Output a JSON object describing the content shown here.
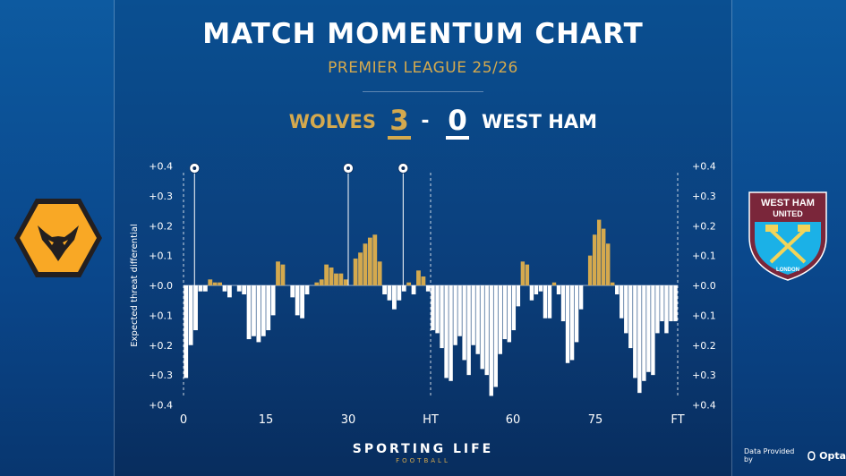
{
  "header": {
    "title": "MATCH MOMENTUM CHART",
    "subtitle": "PREMIER LEAGUE 25/26"
  },
  "match": {
    "home_team": "WOLVES",
    "home_score": "3",
    "separator": "-",
    "away_score": "0",
    "away_team": "WEST HAM"
  },
  "crests": {
    "away_text_top": "WEST HAM",
    "away_text_mid": "UNITED",
    "away_text_bottom": "LONDON"
  },
  "footer": {
    "brand": "SPORTING LIFE",
    "brand_sub": "FOOTBALL",
    "provider_prefix": "Data Provided by",
    "provider_name": "Opta"
  },
  "colors": {
    "home": "#d4a94e",
    "away": "#ffffff",
    "background": "#0b3f7c"
  },
  "chart_data": {
    "type": "bar",
    "ylabel": "Expected threat differential",
    "ylim": [
      -0.4,
      0.4
    ],
    "yticks": [
      "+0.4",
      "+0.3",
      "+0.2",
      "+0.1",
      "+0.0",
      "+0.1",
      "+0.2",
      "+0.3",
      "+0.4"
    ],
    "xtick_labels": [
      "0",
      "15",
      "30",
      "HT",
      "60",
      "75",
      "FT"
    ],
    "x_tick_minutes": [
      0,
      15,
      30,
      45,
      60,
      75,
      90
    ],
    "period_markers": [
      45,
      90
    ],
    "goal_minutes": [
      2,
      30,
      40
    ],
    "series": [
      {
        "name": "WOLVES",
        "period": "first_half",
        "values": [
          -0.31,
          -0.2,
          -0.15,
          -0.02,
          -0.02,
          0.02,
          0.01,
          0.01,
          -0.02,
          -0.04,
          0,
          -0.02,
          -0.03,
          -0.18,
          -0.17,
          -0.19,
          -0.17,
          -0.15,
          -0.1,
          0.08,
          0.07,
          0,
          -0.04,
          -0.1,
          -0.11,
          -0.03,
          0,
          0.01,
          0.02,
          0.07,
          0.06,
          0.04,
          0.04,
          0.02,
          0,
          0.09,
          0.11,
          0.14,
          0.16,
          0.17,
          0.08,
          -0.03,
          -0.05,
          -0.08,
          -0.05,
          -0.02,
          0.01,
          -0.03,
          0.05,
          0.03,
          -0.02
        ],
        "values_end_minute": 45
      },
      {
        "name": "WEST HAM",
        "period": "second_half",
        "values": [
          -0.15,
          -0.16,
          -0.21,
          -0.31,
          -0.32,
          -0.2,
          -0.17,
          -0.25,
          -0.3,
          -0.2,
          -0.23,
          -0.28,
          -0.3,
          -0.37,
          -0.34,
          -0.23,
          -0.18,
          -0.19,
          -0.15,
          -0.07,
          0.08,
          0.07,
          -0.05,
          -0.03,
          -0.02,
          -0.11,
          -0.11,
          0.01,
          -0.03,
          -0.12,
          -0.26,
          -0.25,
          -0.19,
          -0.08,
          0,
          0.1,
          0.17,
          0.22,
          0.19,
          0.14,
          0.01,
          -0.03,
          -0.11,
          -0.16,
          -0.21,
          -0.31,
          -0.36,
          -0.32,
          -0.29,
          -0.3,
          -0.16,
          -0.12,
          -0.16,
          -0.12,
          -0.12
        ],
        "values_end_minute": 90
      }
    ]
  }
}
